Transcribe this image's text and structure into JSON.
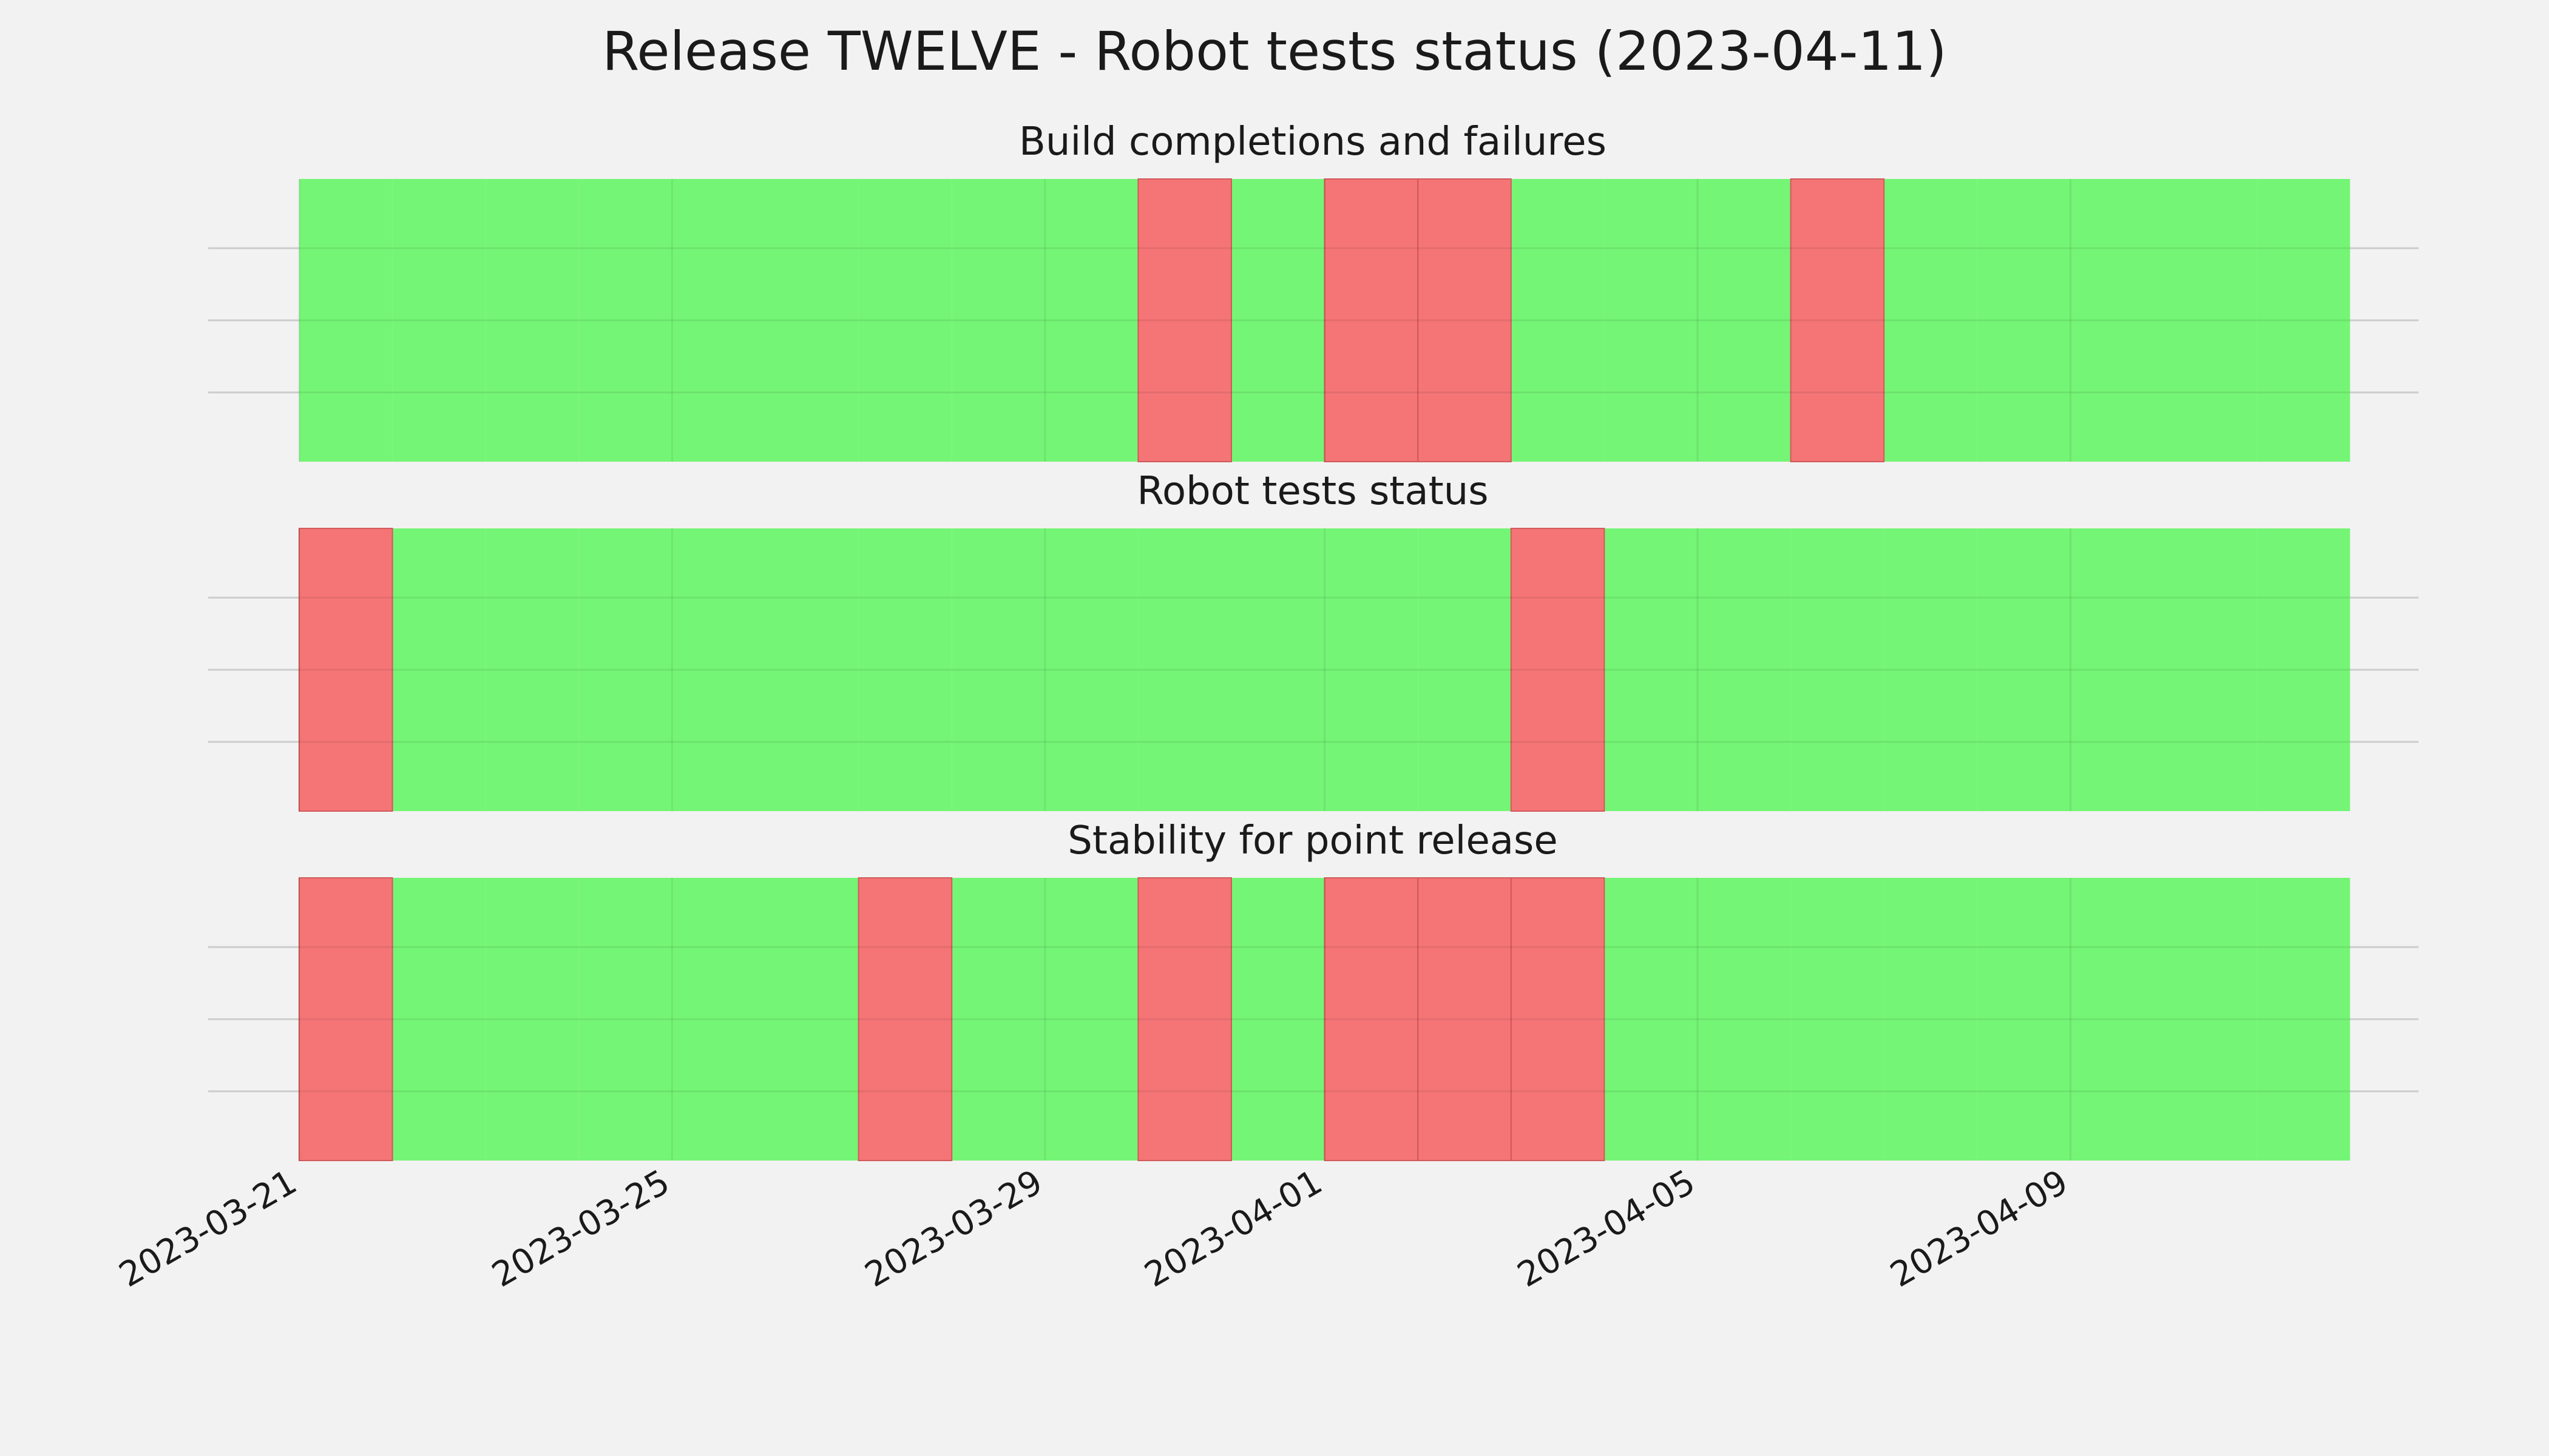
{
  "chart_data": {
    "type": "timeline",
    "title": "Release TWELVE - Robot tests status (2023-04-11)",
    "x_start": "2023-03-21",
    "x_end": "2023-04-11",
    "xlim": [
      "2023-03-21",
      "2023-04-12"
    ],
    "x_ticks": [
      "2023-03-21",
      "2023-03-25",
      "2023-03-29",
      "2023-04-01",
      "2023-04-05",
      "2023-04-09"
    ],
    "grid": true,
    "colors": {
      "pass": "#75f576",
      "fail": "#f57576",
      "background": "#f2f2f2",
      "grid": "#cccccc"
    },
    "panels": [
      {
        "title": "Build completions and failures",
        "status": [
          "pass",
          "pass",
          "pass",
          "pass",
          "pass",
          "pass",
          "pass",
          "pass",
          "pass",
          "fail",
          "pass",
          "fail",
          "fail",
          "pass",
          "pass",
          "pass",
          "fail",
          "pass",
          "pass",
          "pass",
          "pass",
          "pass"
        ]
      },
      {
        "title": "Robot tests status",
        "status": [
          "fail",
          "pass",
          "pass",
          "pass",
          "pass",
          "pass",
          "pass",
          "pass",
          "pass",
          "pass",
          "pass",
          "pass",
          "pass",
          "fail",
          "pass",
          "pass",
          "pass",
          "pass",
          "pass",
          "pass",
          "pass",
          "pass"
        ]
      },
      {
        "title": "Stability for point release",
        "status": [
          "fail",
          "pass",
          "pass",
          "pass",
          "pass",
          "pass",
          "fail",
          "pass",
          "pass",
          "fail",
          "pass",
          "fail",
          "fail",
          "fail",
          "pass",
          "pass",
          "pass",
          "pass",
          "pass",
          "pass",
          "pass",
          "pass"
        ]
      }
    ]
  }
}
